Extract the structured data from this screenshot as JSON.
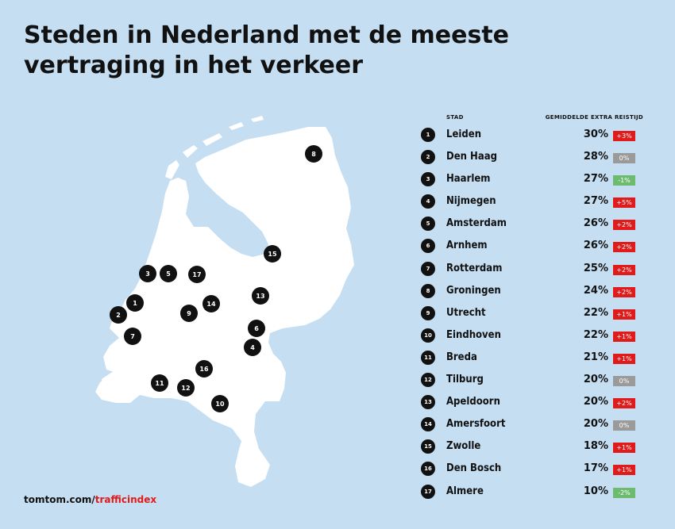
{
  "title_lines": [
    "Steden in Nederland met de meeste",
    "vertraging in het verkeer"
  ],
  "table": {
    "col_city": "STAD",
    "col_extra": "GEMIDDELDE EXTRA REISTIJD",
    "rows": [
      {
        "rank": "1",
        "city": "Leiden",
        "pct": "30%",
        "change": "+3%",
        "trend": "up"
      },
      {
        "rank": "2",
        "city": "Den Haag",
        "pct": "28%",
        "change": "0%",
        "trend": "zero"
      },
      {
        "rank": "3",
        "city": "Haarlem",
        "pct": "27%",
        "change": "-1%",
        "trend": "down"
      },
      {
        "rank": "4",
        "city": "Nijmegen",
        "pct": "27%",
        "change": "+5%",
        "trend": "up"
      },
      {
        "rank": "5",
        "city": "Amsterdam",
        "pct": "26%",
        "change": "+2%",
        "trend": "up"
      },
      {
        "rank": "6",
        "city": "Arnhem",
        "pct": "26%",
        "change": "+2%",
        "trend": "up"
      },
      {
        "rank": "7",
        "city": "Rotterdam",
        "pct": "25%",
        "change": "+2%",
        "trend": "up"
      },
      {
        "rank": "8",
        "city": "Groningen",
        "pct": "24%",
        "change": "+2%",
        "trend": "up"
      },
      {
        "rank": "9",
        "city": "Utrecht",
        "pct": "22%",
        "change": "+1%",
        "trend": "up"
      },
      {
        "rank": "10",
        "city": "Eindhoven",
        "pct": "22%",
        "change": "+1%",
        "trend": "up"
      },
      {
        "rank": "11",
        "city": "Breda",
        "pct": "21%",
        "change": "+1%",
        "trend": "up"
      },
      {
        "rank": "12",
        "city": "Tilburg",
        "pct": "20%",
        "change": "0%",
        "trend": "zero"
      },
      {
        "rank": "13",
        "city": "Apeldoorn",
        "pct": "20%",
        "change": "+2%",
        "trend": "up"
      },
      {
        "rank": "14",
        "city": "Amersfoort",
        "pct": "20%",
        "change": "0%",
        "trend": "zero"
      },
      {
        "rank": "15",
        "city": "Zwolle",
        "pct": "18%",
        "change": "+1%",
        "trend": "up"
      },
      {
        "rank": "16",
        "city": "Den Bosch",
        "pct": "17%",
        "change": "+1%",
        "trend": "up"
      },
      {
        "rank": "17",
        "city": "Almere",
        "pct": "10%",
        "change": "-2%",
        "trend": "down"
      }
    ]
  },
  "map_markers": [
    "1",
    "2",
    "3",
    "4",
    "5",
    "6",
    "7",
    "8",
    "9",
    "10",
    "11",
    "12",
    "13",
    "14",
    "15",
    "16",
    "17"
  ],
  "footer": {
    "domain": "tomtom.com/",
    "path": "trafficindex"
  },
  "colors": {
    "background": "#c5def2",
    "land": "#ffffff",
    "marker": "#111111",
    "increase": "#df1b1b",
    "unchanged": "#9a9a9a",
    "decrease": "#6dbb6f"
  }
}
